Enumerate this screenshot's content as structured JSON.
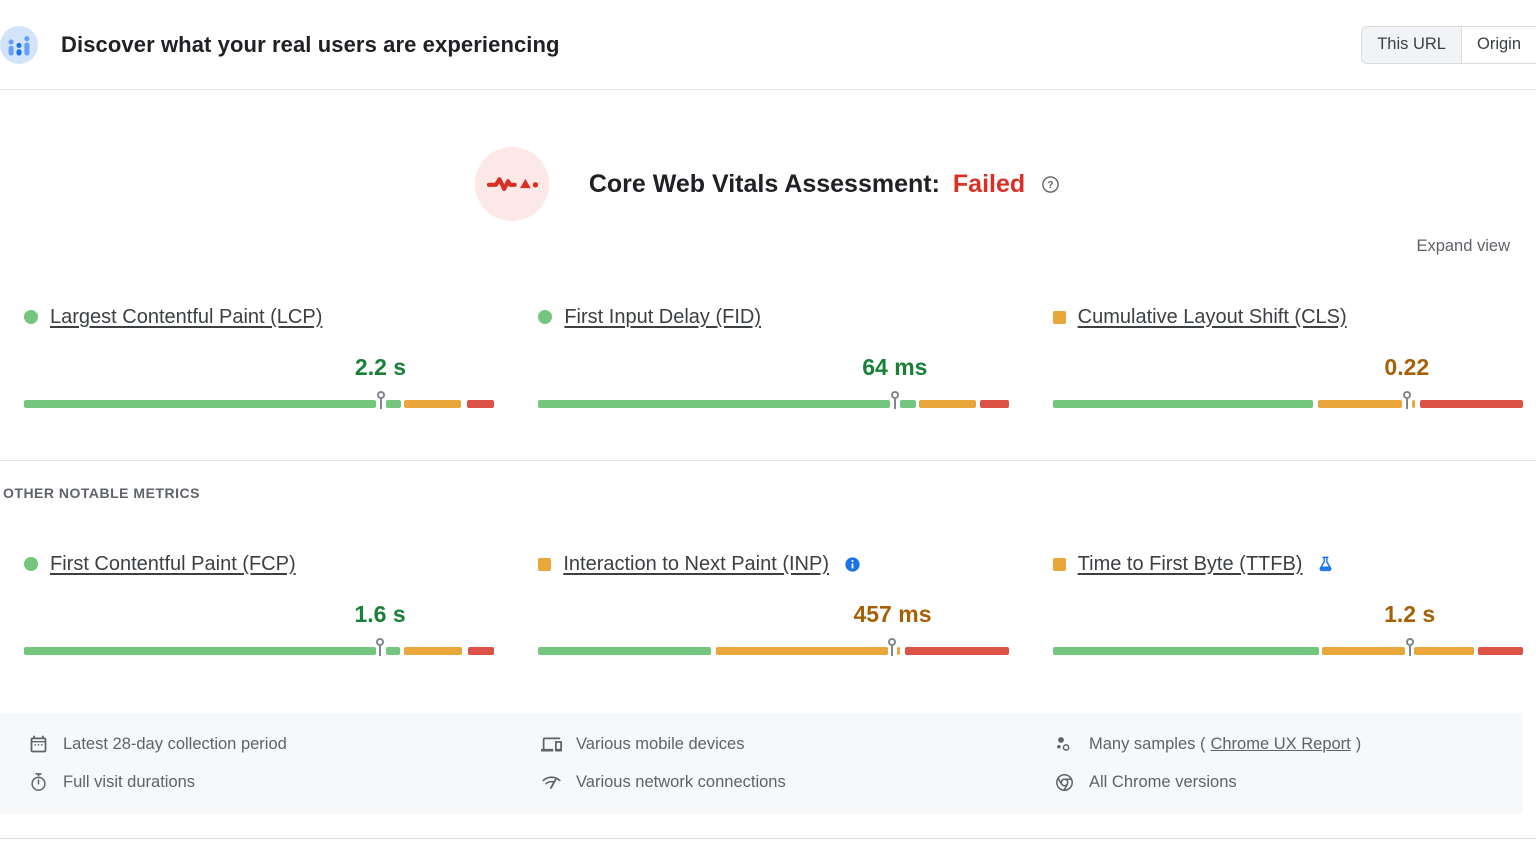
{
  "colors": {
    "bar_green": "#74c67e",
    "bar_orange": "#e9a63b",
    "bar_red": "#dd5247",
    "value_green": "#188038",
    "value_orange": "#a86007",
    "failed_red": "#d93025",
    "accent_blue": "#1a73e8",
    "icon_gray": "#5f6368"
  },
  "header": {
    "title": "Discover what your real users are experiencing",
    "icon": "field-data-icon",
    "tabs": [
      {
        "label": "This URL",
        "selected": true
      },
      {
        "label": "Origin",
        "selected": false
      }
    ]
  },
  "assessment": {
    "label": "Core Web Vitals Assessment:",
    "status": "Failed",
    "icon": "cwv-pulse-icon",
    "help_icon": "help-icon",
    "expand_label": "Expand view"
  },
  "sections": {
    "other_metrics_label": "OTHER NOTABLE METRICS"
  },
  "core_metrics": [
    {
      "id": "lcp",
      "name": "Largest Contentful Paint (LCP)",
      "value": "2.2 s",
      "rating": "good",
      "marker": "circle",
      "badge": null,
      "pin": 75.8,
      "segments": [
        {
          "c": "green",
          "f": 0,
          "t": 74.8
        },
        {
          "c": "green",
          "f": 76.9,
          "t": 80.1
        },
        {
          "c": "orange",
          "f": 80.7,
          "t": 92.9
        },
        {
          "c": "red",
          "f": 94.1,
          "t": 100
        }
      ]
    },
    {
      "id": "fid",
      "name": "First Input Delay (FID)",
      "value": "64 ms",
      "rating": "good",
      "marker": "circle",
      "badge": null,
      "pin": 75.8,
      "segments": [
        {
          "c": "green",
          "f": 0,
          "t": 74.8
        },
        {
          "c": "green",
          "f": 77.0,
          "t": 80.3
        },
        {
          "c": "orange",
          "f": 81.0,
          "t": 93.1
        },
        {
          "c": "red",
          "f": 93.9,
          "t": 100
        }
      ]
    },
    {
      "id": "cls",
      "name": "Cumulative Layout Shift (CLS)",
      "value": "0.22",
      "rating": "average",
      "marker": "square",
      "badge": null,
      "pin": 75.3,
      "segments": [
        {
          "c": "green",
          "f": 0,
          "t": 55.3
        },
        {
          "c": "orange",
          "f": 56.4,
          "t": 74.3
        },
        {
          "c": "orange",
          "f": 76.3,
          "t": 77.1
        },
        {
          "c": "red",
          "f": 78.1,
          "t": 100
        }
      ]
    }
  ],
  "other_metrics": [
    {
      "id": "fcp",
      "name": "First Contentful Paint (FCP)",
      "value": "1.6 s",
      "rating": "good",
      "marker": "circle",
      "badge": null,
      "pin": 75.7,
      "segments": [
        {
          "c": "green",
          "f": 0,
          "t": 74.8
        },
        {
          "c": "green",
          "f": 77.0,
          "t": 80.0
        },
        {
          "c": "orange",
          "f": 80.8,
          "t": 93.2
        },
        {
          "c": "red",
          "f": 94.3,
          "t": 100
        }
      ]
    },
    {
      "id": "inp",
      "name": "Interaction to Next Paint (INP)",
      "value": "457 ms",
      "rating": "average",
      "marker": "square",
      "badge": "info",
      "pin": 75.3,
      "segments": [
        {
          "c": "green",
          "f": 0,
          "t": 36.8
        },
        {
          "c": "orange",
          "f": 37.7,
          "t": 74.3
        },
        {
          "c": "orange",
          "f": 76.2,
          "t": 77.0
        },
        {
          "c": "red",
          "f": 78.0,
          "t": 100
        }
      ]
    },
    {
      "id": "ttfb",
      "name": "Time to First Byte (TTFB)",
      "value": "1.2 s",
      "rating": "average",
      "marker": "square",
      "badge": "flask",
      "pin": 75.9,
      "segments": [
        {
          "c": "green",
          "f": 0,
          "t": 56.6
        },
        {
          "c": "orange",
          "f": 57.3,
          "t": 74.9
        },
        {
          "c": "orange",
          "f": 76.8,
          "t": 89.5
        },
        {
          "c": "red",
          "f": 90.4,
          "t": 100
        }
      ]
    }
  ],
  "footer": {
    "columns": [
      {
        "rows": [
          {
            "icon": "calendar-icon",
            "text": "Latest 28-day collection period"
          },
          {
            "icon": "timer-icon",
            "text": "Full visit durations"
          }
        ]
      },
      {
        "rows": [
          {
            "icon": "devices-icon",
            "text": "Various mobile devices"
          },
          {
            "icon": "network-icon",
            "text": "Various network connections"
          }
        ]
      },
      {
        "rows": [
          {
            "icon": "samples-icon",
            "text": "Many samples (",
            "link": "Chrome UX Report",
            "text_after": ")"
          },
          {
            "icon": "chrome-icon",
            "text": "All Chrome versions"
          }
        ]
      }
    ]
  }
}
